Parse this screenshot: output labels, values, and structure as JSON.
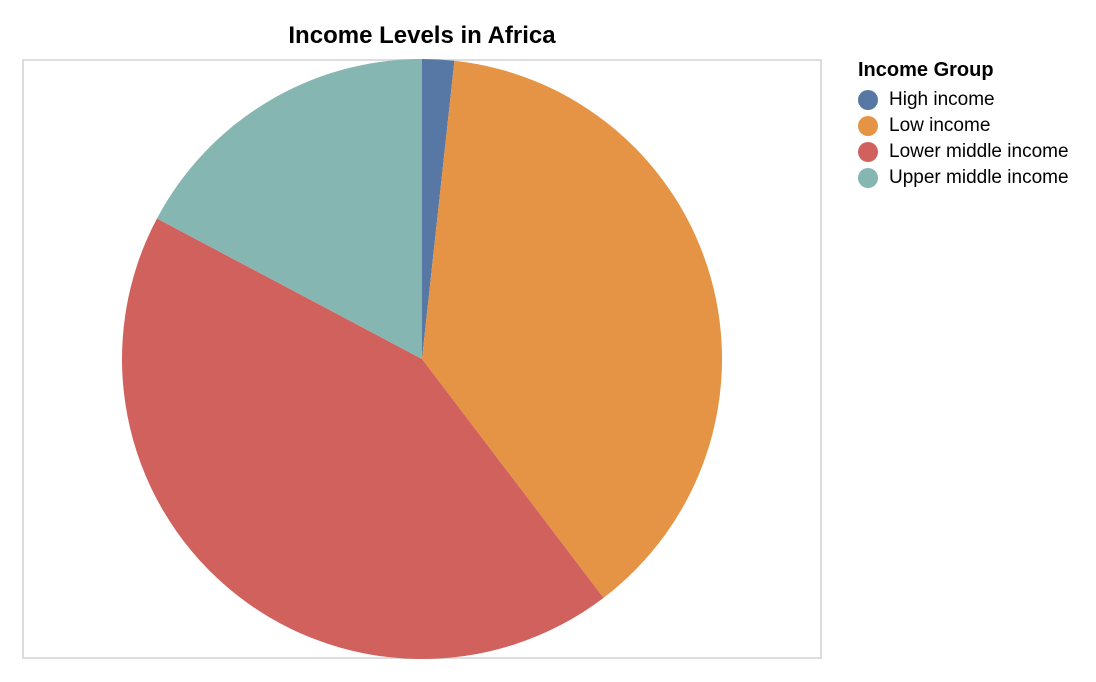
{
  "chart_data": {
    "type": "pie",
    "title": "Income Levels in Africa",
    "legend": {
      "title": "Income Group",
      "placement": "right"
    },
    "categories": [
      "High income",
      "Low income",
      "Lower middle income",
      "Upper middle income"
    ],
    "values": [
      1,
      22,
      25,
      10
    ],
    "colors": [
      "#5778a4",
      "#e49444",
      "#d1615d",
      "#85b6b2"
    ],
    "start_angle_deg": 0,
    "direction": "clockwise"
  }
}
